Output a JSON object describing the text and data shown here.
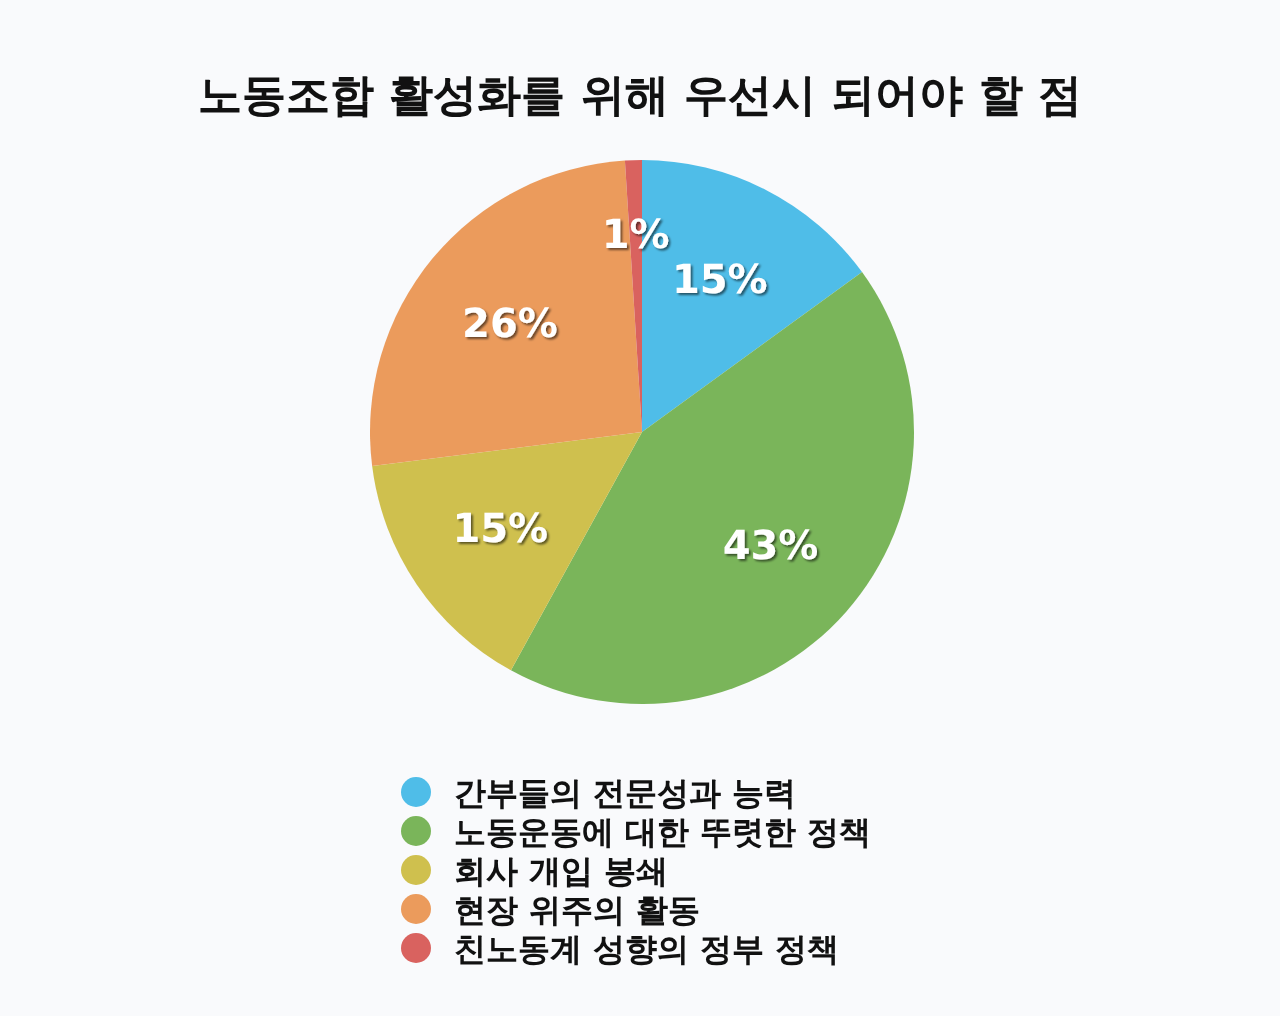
{
  "chart_data": {
    "type": "pie",
    "title": "노동조합 활성화를 위해 우선시 되어야 할 점",
    "categories": [
      "간부들의 전문성과 능력",
      "노동운동에 대한 뚜렷한 정책",
      "회사 개입 봉쇄",
      "현장 위주의 활동",
      "친노동계 성향의 정부 정책"
    ],
    "values": [
      15,
      43,
      15,
      26,
      1
    ],
    "colors": [
      "#4fbde8",
      "#7ab55a",
      "#cfc04e",
      "#eb9b5c",
      "#d9625f"
    ],
    "value_labels": [
      "15%",
      "43%",
      "15%",
      "26%",
      "1%"
    ],
    "legend": "bottom"
  }
}
